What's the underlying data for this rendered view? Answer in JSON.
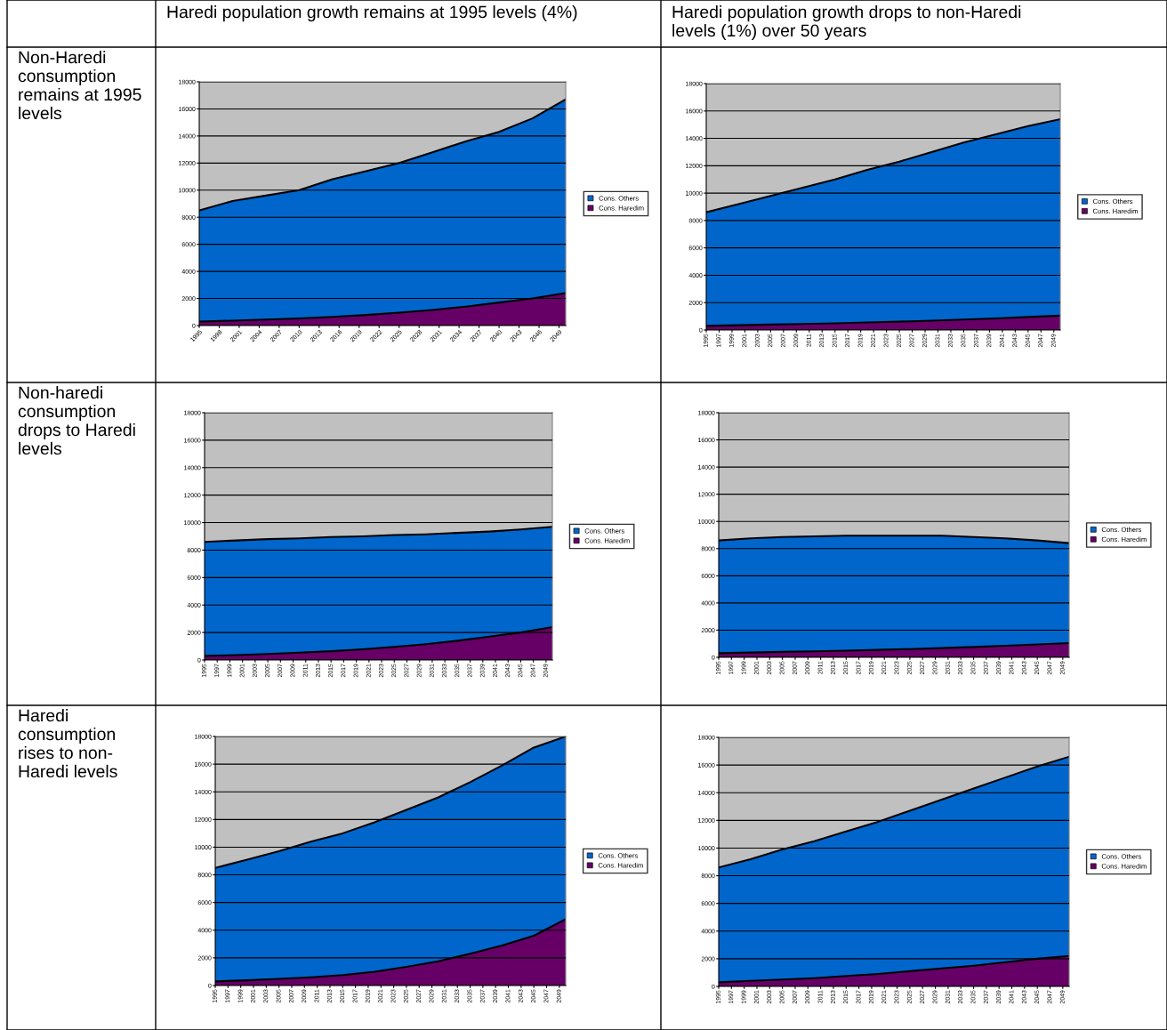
{
  "chart_data": [
    {
      "type": "area",
      "stacked": true,
      "title": "Haredi population growth remains at 1995 levels (4%)",
      "annotations": [
        "Non-Haredi\nconsumption\nremains at 1995\nlevels"
      ],
      "x": [
        1995,
        2000,
        2005,
        2010,
        2015,
        2020,
        2025,
        2030,
        2035,
        2040,
        2045,
        2050
      ],
      "xlim": [
        1995,
        2050
      ],
      "xticks": [
        1995,
        1998,
        2001,
        2004,
        2007,
        2010,
        2013,
        2016,
        2019,
        2022,
        2025,
        2028,
        2031,
        2034,
        2037,
        2040,
        2043,
        2046,
        2049
      ],
      "ylim": [
        0,
        18000
      ],
      "yticks": [
        0,
        2000,
        4000,
        6000,
        8000,
        10000,
        12000,
        14000,
        16000,
        18000
      ],
      "grid": "y",
      "legend": "right",
      "series": [
        {
          "name": "Cons. Haredim",
          "color": "#660066",
          "values": [
            300,
            360,
            440,
            530,
            640,
            780,
            950,
            1150,
            1400,
            1700,
            2000,
            2400
          ]
        },
        {
          "name": "Cons. Others",
          "color": "#0066cc",
          "values": [
            8200,
            8840,
            9160,
            9470,
            10160,
            10620,
            11050,
            11650,
            12200,
            12600,
            13300,
            14300
          ]
        }
      ]
    },
    {
      "type": "area",
      "stacked": true,
      "title": "Haredi population growth drops to non-Haredi\nlevels (1%) over 50 years",
      "x": [
        1995,
        2000,
        2005,
        2010,
        2015,
        2020,
        2025,
        2030,
        2035,
        2040,
        2045,
        2050
      ],
      "xlim": [
        1995,
        2050
      ],
      "xticks": [
        1995,
        1997,
        1999,
        2001,
        2003,
        2005,
        2007,
        2009,
        2011,
        2013,
        2015,
        2017,
        2019,
        2021,
        2023,
        2025,
        2027,
        2029,
        2031,
        2033,
        2035,
        2037,
        2039,
        2041,
        2043,
        2045,
        2047,
        2049
      ],
      "ylim": [
        0,
        18000
      ],
      "yticks": [
        0,
        2000,
        4000,
        6000,
        8000,
        10000,
        12000,
        14000,
        16000,
        18000
      ],
      "grid": "y",
      "legend": "right",
      "series": [
        {
          "name": "Cons. Haredim",
          "color": "#660066",
          "values": [
            300,
            350,
            400,
            440,
            490,
            550,
            610,
            680,
            760,
            850,
            950,
            1050
          ]
        },
        {
          "name": "Cons. Others",
          "color": "#0066cc",
          "values": [
            8300,
            8850,
            9400,
            9960,
            10510,
            11150,
            11690,
            12320,
            12940,
            13450,
            13950,
            14350
          ]
        }
      ]
    },
    {
      "type": "area",
      "stacked": true,
      "annotations": [
        "Non-haredi\nconsumption\ndrops to Haredi\nlevels"
      ],
      "x": [
        1995,
        2000,
        2005,
        2010,
        2015,
        2020,
        2025,
        2030,
        2035,
        2040,
        2045,
        2050
      ],
      "xlim": [
        1995,
        2050
      ],
      "xticks": [
        1995,
        1997,
        1999,
        2001,
        2003,
        2005,
        2007,
        2009,
        2011,
        2013,
        2015,
        2017,
        2019,
        2021,
        2023,
        2025,
        2027,
        2029,
        2031,
        2033,
        2035,
        2037,
        2039,
        2041,
        2043,
        2045,
        2047,
        2049
      ],
      "ylim": [
        0,
        18000
      ],
      "yticks": [
        0,
        2000,
        4000,
        6000,
        8000,
        10000,
        12000,
        14000,
        16000,
        18000
      ],
      "grid": "y",
      "legend": "right",
      "series": [
        {
          "name": "Cons. Haredim",
          "color": "#660066",
          "values": [
            300,
            360,
            440,
            530,
            640,
            780,
            950,
            1150,
            1400,
            1700,
            2000,
            2400
          ]
        },
        {
          "name": "Cons. Others",
          "color": "#0066cc",
          "values": [
            8300,
            8340,
            8360,
            8320,
            8310,
            8220,
            8150,
            8000,
            7850,
            7650,
            7500,
            7300
          ]
        }
      ]
    },
    {
      "type": "area",
      "stacked": true,
      "x": [
        1995,
        2000,
        2005,
        2010,
        2015,
        2020,
        2025,
        2030,
        2035,
        2040,
        2045,
        2050
      ],
      "xlim": [
        1995,
        2050
      ],
      "xticks": [
        1995,
        1997,
        1999,
        2001,
        2003,
        2005,
        2007,
        2009,
        2011,
        2013,
        2015,
        2017,
        2019,
        2021,
        2023,
        2025,
        2027,
        2029,
        2031,
        2033,
        2035,
        2037,
        2039,
        2041,
        2043,
        2045,
        2047,
        2049
      ],
      "ylim": [
        0,
        18000
      ],
      "yticks": [
        0,
        2000,
        4000,
        6000,
        8000,
        10000,
        12000,
        14000,
        16000,
        18000
      ],
      "grid": "y",
      "legend": "right",
      "series": [
        {
          "name": "Cons. Haredim",
          "color": "#660066",
          "values": [
            300,
            350,
            400,
            440,
            490,
            550,
            610,
            680,
            760,
            850,
            950,
            1050
          ]
        },
        {
          "name": "Cons. Others",
          "color": "#0066cc",
          "values": [
            8300,
            8400,
            8450,
            8460,
            8460,
            8400,
            8340,
            8270,
            8090,
            7900,
            7650,
            7350
          ]
        }
      ]
    },
    {
      "type": "area",
      "stacked": true,
      "annotations": [
        "Haredi\nconsumption\nrises to non-\nHaredi levels"
      ],
      "x": [
        1995,
        2000,
        2005,
        2010,
        2015,
        2020,
        2025,
        2030,
        2035,
        2040,
        2045,
        2050
      ],
      "xlim": [
        1995,
        2050
      ],
      "xticks": [
        1995,
        1997,
        1999,
        2001,
        2003,
        2005,
        2007,
        2009,
        2011,
        2013,
        2015,
        2017,
        2019,
        2021,
        2023,
        2025,
        2027,
        2029,
        2031,
        2033,
        2035,
        2037,
        2039,
        2041,
        2043,
        2045,
        2047,
        2049
      ],
      "ylim": [
        0,
        18000
      ],
      "yticks": [
        0,
        2000,
        4000,
        6000,
        8000,
        10000,
        12000,
        14000,
        16000,
        18000
      ],
      "grid": "y",
      "legend": "right",
      "series": [
        {
          "name": "Cons. Haredim",
          "color": "#660066",
          "values": [
            300,
            380,
            480,
            600,
            760,
            1000,
            1350,
            1750,
            2300,
            2900,
            3600,
            4800
          ]
        },
        {
          "name": "Cons. Others",
          "color": "#0066cc",
          "values": [
            8200,
            8720,
            9220,
            9800,
            10240,
            10800,
            11350,
            11850,
            12400,
            13000,
            13600,
            13200
          ]
        }
      ]
    },
    {
      "type": "area",
      "stacked": true,
      "x": [
        1995,
        2000,
        2005,
        2010,
        2015,
        2020,
        2025,
        2030,
        2035,
        2040,
        2045,
        2050
      ],
      "xlim": [
        1995,
        2050
      ],
      "xticks": [
        1995,
        1997,
        1999,
        2001,
        2003,
        2005,
        2007,
        2009,
        2011,
        2013,
        2015,
        2017,
        2019,
        2021,
        2023,
        2025,
        2027,
        2029,
        2031,
        2033,
        2035,
        2037,
        2039,
        2041,
        2043,
        2045,
        2047,
        2049
      ],
      "ylim": [
        0,
        18000
      ],
      "yticks": [
        0,
        2000,
        4000,
        6000,
        8000,
        10000,
        12000,
        14000,
        16000,
        18000
      ],
      "grid": "y",
      "legend": "right",
      "series": [
        {
          "name": "Cons. Haredim",
          "color": "#660066",
          "values": [
            300,
            400,
            500,
            600,
            750,
            900,
            1100,
            1300,
            1500,
            1750,
            2000,
            2200
          ]
        },
        {
          "name": "Cons. Others",
          "color": "#0066cc",
          "values": [
            8300,
            8800,
            9400,
            9900,
            10450,
            11000,
            11600,
            12200,
            12800,
            13350,
            13900,
            14400
          ]
        }
      ]
    }
  ]
}
